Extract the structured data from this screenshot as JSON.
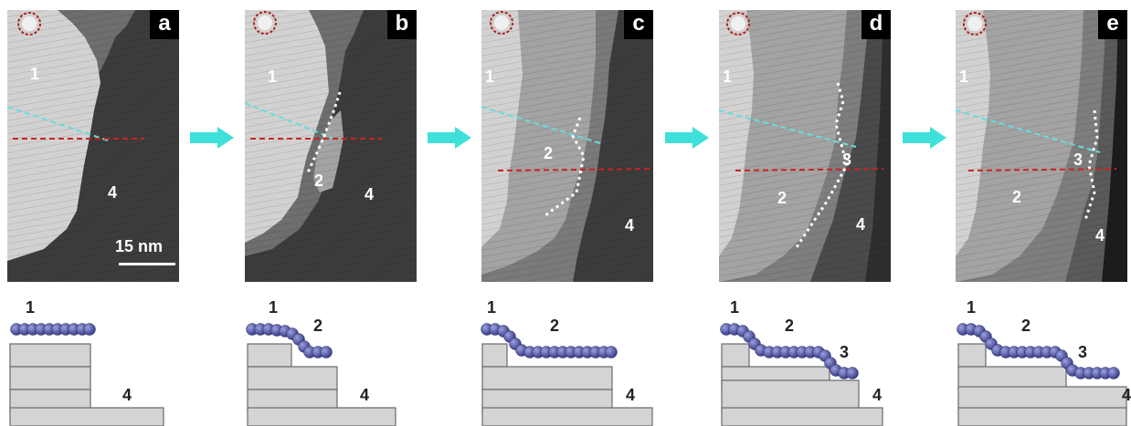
{
  "panels": [
    {
      "tag": "a",
      "terraces": [
        {
          "label": "1"
        },
        {
          "label": "4"
        }
      ],
      "scale_bar": "15 nm"
    },
    {
      "tag": "b",
      "terraces": [
        {
          "label": "1"
        },
        {
          "label": "2"
        },
        {
          "label": "4"
        }
      ]
    },
    {
      "tag": "c",
      "terraces": [
        {
          "label": "1"
        },
        {
          "label": "2"
        },
        {
          "label": "4"
        }
      ]
    },
    {
      "tag": "d",
      "terraces": [
        {
          "label": "1"
        },
        {
          "label": "3"
        },
        {
          "label": "2"
        },
        {
          "label": "4"
        }
      ]
    },
    {
      "tag": "e",
      "terraces": [
        {
          "label": "1"
        },
        {
          "label": "3"
        },
        {
          "label": "2"
        },
        {
          "label": "4"
        }
      ]
    }
  ],
  "schematics": [
    {
      "labels": [
        "1",
        "4"
      ]
    },
    {
      "labels": [
        "1",
        "2",
        "4"
      ]
    },
    {
      "labels": [
        "1",
        "2",
        "4"
      ]
    },
    {
      "labels": [
        "1",
        "2",
        "3",
        "4"
      ]
    },
    {
      "labels": [
        "1",
        "2",
        "3",
        "4"
      ]
    }
  ],
  "colors": {
    "terrace_1": "#d2d2d2",
    "terrace_2": "#a3a3a3",
    "terrace_3": "#7e7e7e",
    "terrace_4": "#3c3c3c",
    "red_line": "#cc2222",
    "cyan_line": "#66dddd",
    "arrow": "#3fe0da",
    "molecule": "#5a5ea6",
    "step_fill": "#d4d4d4"
  },
  "icons": {
    "tip_marker": "dashed-circle-icon",
    "sequence_arrow": "right-arrow-icon"
  }
}
